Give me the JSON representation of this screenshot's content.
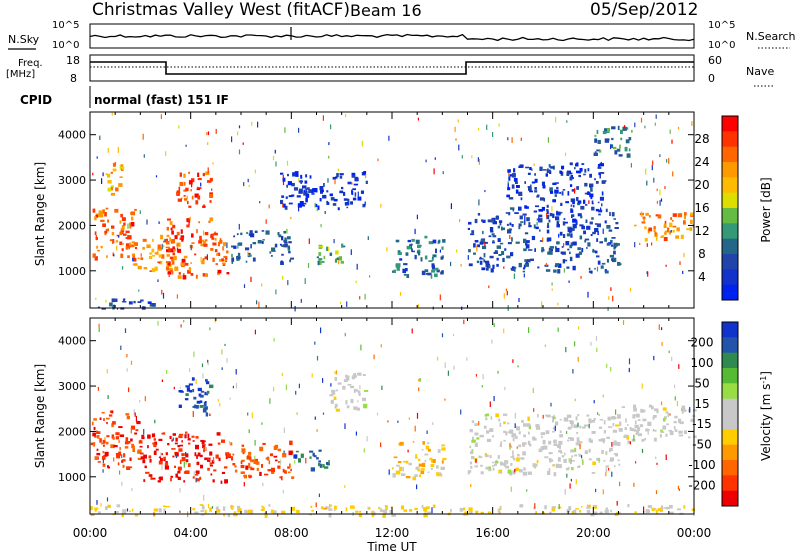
{
  "header": {
    "title": "Christmas Valley West (fitACF)",
    "beam": "Beam 16",
    "date": "05/Sep/2012"
  },
  "strip_labels": {
    "nsky": "N.Sky",
    "nsearch": "N.Search",
    "freq": "Freq.",
    "freq_unit": "[MHz]",
    "nave": "Nave",
    "cpid": "CPID",
    "cpid_value": "normal (fast) 151 IF"
  },
  "strip_ticks": {
    "noise_left_top": "10^5",
    "noise_left_bottom": "10^0",
    "noise_right_top": "10^5",
    "noise_right_bottom": "10^0",
    "freq_left_top": "18",
    "freq_left_bottom": "8",
    "nave_right_top": "60",
    "nave_right_bottom": "0"
  },
  "axes": {
    "ylabel": "Slant Range [km]",
    "xlabel": "Time UT",
    "x_ticks": [
      "00:00",
      "04:00",
      "08:00",
      "12:00",
      "16:00",
      "20:00",
      "00:00"
    ],
    "y_ticks": [
      "1000",
      "2000",
      "3000",
      "4000"
    ]
  },
  "colorbar_power": {
    "label": "Power [dB]",
    "ticks": [
      "28",
      "24",
      "20",
      "16",
      "12",
      "8",
      "4"
    ],
    "colors": [
      "#ff0000",
      "#ff3300",
      "#ff6600",
      "#ff9900",
      "#ffbb00",
      "#dddd00",
      "#66bb44",
      "#339977",
      "#226688",
      "#2244aa",
      "#1133cc",
      "#0022ee"
    ]
  },
  "colorbar_velocity": {
    "label": "Velocity [m s",
    "label_sup": "-1",
    "label_end": "]",
    "ticks": [
      "200",
      "100",
      "50",
      "15",
      "-15",
      "-50",
      "-100",
      "-200"
    ],
    "colors": [
      "#1133cc",
      "#2255aa",
      "#2f8a50",
      "#55bb33",
      "#99dd44",
      "#c8c8c8",
      "#c8c8c8",
      "#ffcc00",
      "#ff9900",
      "#ff6600",
      "#ff3300",
      "#ee0000"
    ]
  },
  "chart_data": [
    {
      "type": "heatmap",
      "title": "Power [dB]",
      "xlabel": "Time UT",
      "ylabel": "Slant Range [km]",
      "x_range_hours": [
        0,
        24
      ],
      "ylim_km": [
        180,
        4500
      ],
      "value_range": [
        0,
        30
      ],
      "regions": [
        {
          "t0": 0.0,
          "t1": 1.8,
          "r0": 1300,
          "r1": 2400,
          "v": 24
        },
        {
          "t0": 0.6,
          "t1": 1.3,
          "r0": 2700,
          "r1": 3400,
          "v": 20
        },
        {
          "t0": 1.5,
          "t1": 3.3,
          "r0": 1000,
          "r1": 1800,
          "v": 22
        },
        {
          "t0": 3.3,
          "t1": 4.8,
          "r0": 2400,
          "r1": 3200,
          "v": 26
        },
        {
          "t0": 3.0,
          "t1": 5.5,
          "r0": 900,
          "r1": 2200,
          "v": 25
        },
        {
          "t0": 5.5,
          "t1": 8.0,
          "r0": 1200,
          "r1": 1900,
          "v": 8
        },
        {
          "t0": 7.5,
          "t1": 11.0,
          "r0": 2400,
          "r1": 3200,
          "v": 3
        },
        {
          "t0": 9.0,
          "t1": 10.0,
          "r0": 1200,
          "r1": 1600,
          "v": 12
        },
        {
          "t0": 12.0,
          "t1": 14.0,
          "r0": 900,
          "r1": 1800,
          "v": 8
        },
        {
          "t0": 15.0,
          "t1": 21.0,
          "r0": 1000,
          "r1": 2300,
          "v": 6
        },
        {
          "t0": 16.5,
          "t1": 20.5,
          "r0": 2300,
          "r1": 3400,
          "v": 4
        },
        {
          "t0": 20.0,
          "t1": 21.5,
          "r0": 3500,
          "r1": 4200,
          "v": 10
        },
        {
          "t0": 21.5,
          "t1": 24.0,
          "r0": 1700,
          "r1": 2300,
          "v": 22
        },
        {
          "t0": 0.3,
          "t1": 2.7,
          "r0": 180,
          "r1": 400,
          "v": 6
        }
      ]
    },
    {
      "type": "heatmap",
      "title": "Velocity [m s-1]",
      "xlabel": "Time UT",
      "ylabel": "Slant Range [km]",
      "x_range_hours": [
        0,
        24
      ],
      "ylim_km": [
        180,
        4500
      ],
      "value_range": [
        -250,
        250
      ],
      "regions": [
        {
          "t0": 0.0,
          "t1": 2.0,
          "r0": 1200,
          "r1": 2500,
          "v": -180
        },
        {
          "t0": 2.0,
          "t1": 5.5,
          "r0": 900,
          "r1": 2000,
          "v": -220
        },
        {
          "t0": 3.5,
          "t1": 4.8,
          "r0": 2400,
          "r1": 3200,
          "v": 200
        },
        {
          "t0": 5.5,
          "t1": 8.0,
          "r0": 1000,
          "r1": 1800,
          "v": -180
        },
        {
          "t0": 8.0,
          "t1": 9.5,
          "r0": 1200,
          "r1": 1600,
          "v": 180
        },
        {
          "t0": 9.5,
          "t1": 11.0,
          "r0": 2500,
          "r1": 3300,
          "v": 0
        },
        {
          "t0": 12.0,
          "t1": 14.0,
          "r0": 1000,
          "r1": 1800,
          "v": -60
        },
        {
          "t0": 15.0,
          "t1": 21.0,
          "r0": 1100,
          "r1": 2400,
          "v": 0
        },
        {
          "t0": 21.0,
          "t1": 24.0,
          "r0": 1800,
          "r1": 2600,
          "v": 0
        },
        {
          "t0": 0.0,
          "t1": 24.0,
          "r0": 180,
          "r1": 400,
          "v": -40
        }
      ]
    }
  ]
}
